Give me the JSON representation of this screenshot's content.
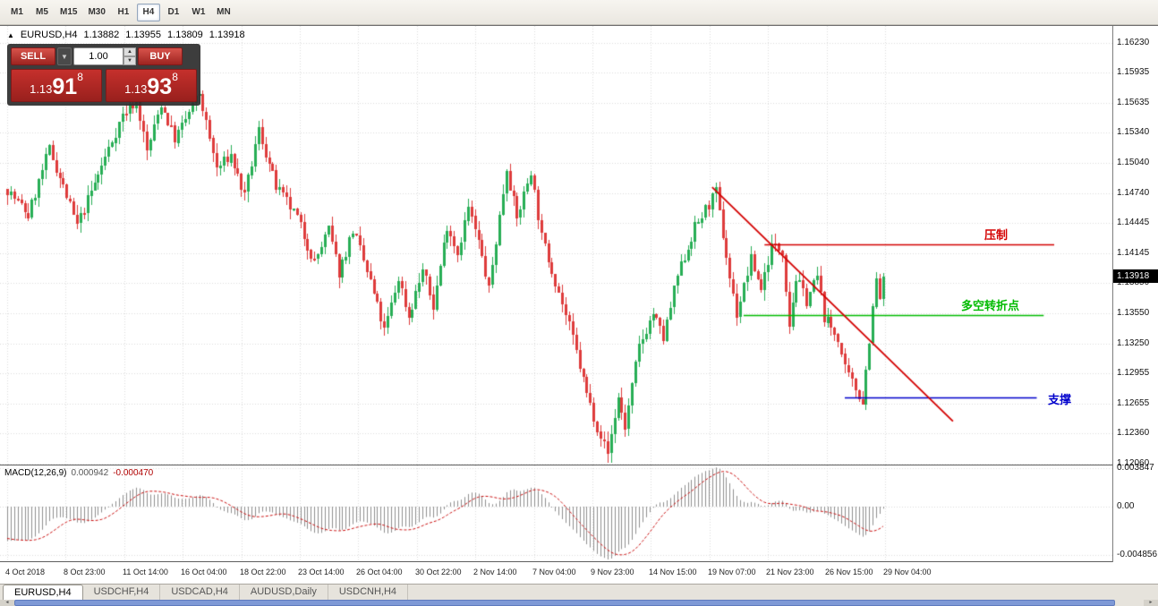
{
  "toolbar": {
    "timeframes": [
      {
        "label": "M1",
        "active": false
      },
      {
        "label": "M5",
        "active": false
      },
      {
        "label": "M15",
        "active": false
      },
      {
        "label": "M30",
        "active": false
      },
      {
        "label": "H1",
        "active": false
      },
      {
        "label": "H4",
        "active": true
      },
      {
        "label": "D1",
        "active": false
      },
      {
        "label": "W1",
        "active": false
      },
      {
        "label": "MN",
        "active": false
      }
    ]
  },
  "chart": {
    "title": {
      "collapse_arrow": "▲",
      "symbol": "EURUSD,H4",
      "open": "1.13882",
      "high": "1.13955",
      "low": "1.13809",
      "close": "1.13918"
    },
    "trade_panel": {
      "sell_label": "SELL",
      "buy_label": "BUY",
      "volume": "1.00",
      "bid": {
        "prefix": "1.13",
        "big": "91",
        "sup": "8"
      },
      "ask": {
        "prefix": "1.13",
        "big": "93",
        "sup": "8"
      }
    },
    "current_price": "1.13918",
    "price_axis": [
      "1.16230",
      "1.15935",
      "1.15635",
      "1.15340",
      "1.15040",
      "1.14740",
      "1.14445",
      "1.14145",
      "1.13850",
      "1.13550",
      "1.13250",
      "1.12955",
      "1.12655",
      "1.12360",
      "1.12060"
    ],
    "time_axis": [
      "4 Oct 2018",
      "8 Oct 23:00",
      "11 Oct 14:00",
      "16 Oct 04:00",
      "18 Oct 22:00",
      "23 Oct 14:00",
      "26 Oct 04:00",
      "30 Oct 22:00",
      "2 Nov 14:00",
      "7 Nov 04:00",
      "9 Nov 23:00",
      "14 Nov 15:00",
      "19 Nov 07:00",
      "21 Nov 23:00",
      "26 Nov 15:00",
      "29 Nov 04:00"
    ],
    "lines": {
      "resistance": {
        "label": "压制",
        "color": "#D40000",
        "price": 1.1423,
        "i1": 217,
        "i2": 300
      },
      "pivot": {
        "label": "多空转折点",
        "color": "#00BB00",
        "price": 1.1353,
        "i1": 211,
        "i2": 297
      },
      "support": {
        "label": "支撑",
        "color": "#0000CC",
        "price": 1.1272,
        "i1": 240,
        "i2": 295
      },
      "trendline": {
        "color": "#D40000",
        "i1": 202,
        "price1": 1.148,
        "i2": 271,
        "price2": 1.1248
      }
    }
  },
  "macd": {
    "label": "MACD(12,26,9)",
    "main_value": "0.000942",
    "signal_value": "-0.000470",
    "axis": [
      "0.003847",
      "0.00",
      "-0.004856"
    ]
  },
  "tabs": [
    {
      "label": "EURUSD,H4",
      "active": true
    },
    {
      "label": "USDCHF,H4",
      "active": false
    },
    {
      "label": "USDCAD,H4",
      "active": false
    },
    {
      "label": "AUDUSD,Daily",
      "active": false
    },
    {
      "label": "USDCNH,H4",
      "active": false
    }
  ],
  "chart_data": {
    "type": "candlestick",
    "symbol": "EURUSD",
    "timeframe": "H4",
    "title": "EURUSD,H4 1.13882 1.13955 1.13809 1.13918",
    "ylim": [
      1.1206,
      1.1623
    ],
    "y_ticks": [
      1.1623,
      1.15935,
      1.15635,
      1.1534,
      1.1504,
      1.1474,
      1.14445,
      1.14145,
      1.1385,
      1.1355,
      1.1325,
      1.12955,
      1.12655,
      1.1236,
      1.1206
    ],
    "x_ticks": [
      "4 Oct 2018",
      "8 Oct 23:00",
      "11 Oct 14:00",
      "16 Oct 04:00",
      "18 Oct 22:00",
      "23 Oct 14:00",
      "26 Oct 04:00",
      "30 Oct 22:00",
      "2 Nov 14:00",
      "7 Nov 04:00",
      "9 Nov 23:00",
      "14 Nov 15:00",
      "19 Nov 07:00",
      "21 Nov 23:00",
      "26 Nov 15:00",
      "29 Nov 04:00"
    ],
    "candle_count": 252,
    "last_close": 1.13918,
    "up_color": "#27AE55",
    "down_color": "#DE3B3B",
    "grid": true,
    "swing_points": [
      [
        0,
        1.1478
      ],
      [
        6,
        1.1452
      ],
      [
        12,
        1.1518
      ],
      [
        20,
        1.1442
      ],
      [
        33,
        1.1552
      ],
      [
        37,
        1.1566
      ],
      [
        40,
        1.1515
      ],
      [
        44,
        1.1563
      ],
      [
        48,
        1.1528
      ],
      [
        55,
        1.1573
      ],
      [
        60,
        1.1498
      ],
      [
        64,
        1.1512
      ],
      [
        68,
        1.147
      ],
      [
        72,
        1.1537
      ],
      [
        77,
        1.148
      ],
      [
        83,
        1.145
      ],
      [
        88,
        1.1405
      ],
      [
        92,
        1.1438
      ],
      [
        95,
        1.1395
      ],
      [
        99,
        1.1438
      ],
      [
        104,
        1.1386
      ],
      [
        108,
        1.1337
      ],
      [
        112,
        1.139
      ],
      [
        115,
        1.1352
      ],
      [
        119,
        1.1398
      ],
      [
        122,
        1.1362
      ],
      [
        126,
        1.1443
      ],
      [
        129,
        1.1415
      ],
      [
        132,
        1.146
      ],
      [
        135,
        1.1425
      ],
      [
        138,
        1.1378
      ],
      [
        143,
        1.15
      ],
      [
        146,
        1.1448
      ],
      [
        150,
        1.1497
      ],
      [
        153,
        1.143
      ],
      [
        157,
        1.1388
      ],
      [
        162,
        1.133
      ],
      [
        166,
        1.1275
      ],
      [
        169,
        1.1243
      ],
      [
        172,
        1.1216
      ],
      [
        175,
        1.1272
      ],
      [
        177,
        1.1242
      ],
      [
        181,
        1.1322
      ],
      [
        185,
        1.1355
      ],
      [
        188,
        1.133
      ],
      [
        192,
        1.1392
      ],
      [
        197,
        1.144
      ],
      [
        203,
        1.1475
      ],
      [
        207,
        1.139
      ],
      [
        209,
        1.1355
      ],
      [
        213,
        1.1408
      ],
      [
        216,
        1.138
      ],
      [
        219,
        1.1422
      ],
      [
        222,
        1.1418
      ],
      [
        224,
        1.1345
      ],
      [
        226,
        1.139
      ],
      [
        229,
        1.1368
      ],
      [
        232,
        1.1392
      ],
      [
        234,
        1.1352
      ],
      [
        238,
        1.133
      ],
      [
        240,
        1.1298
      ],
      [
        243,
        1.128
      ],
      [
        245,
        1.1268
      ],
      [
        247,
        1.133
      ],
      [
        249,
        1.1388
      ],
      [
        250,
        1.137
      ],
      [
        251,
        1.1392
      ]
    ],
    "indicator": {
      "name": "MACD",
      "params": [
        12,
        26,
        9
      ],
      "main": 0.000942,
      "signal": -0.00047,
      "axis_max": 0.003847,
      "axis_min": -0.004856
    }
  }
}
